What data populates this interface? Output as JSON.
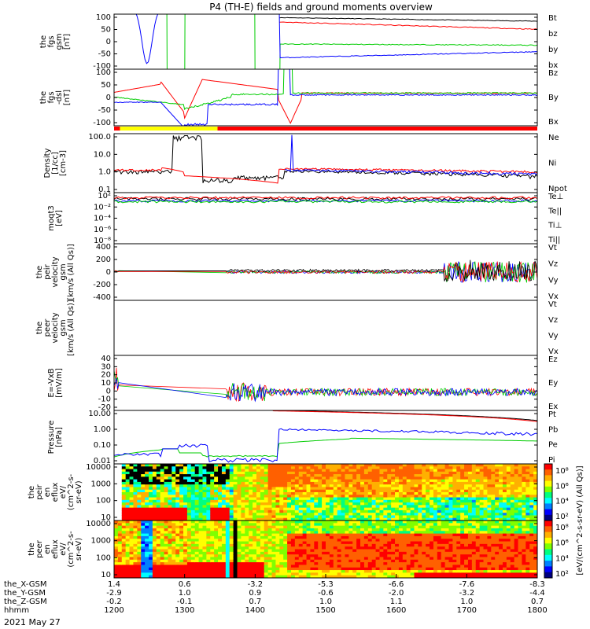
{
  "title": "P4 (TH-E) fields and ground moments overview",
  "date": "2021 May 27",
  "colors": {
    "black": "#000000",
    "red": "#ff0000",
    "green": "#00cc00",
    "blue": "#0000ff",
    "yellow": "#ffff00"
  },
  "chart_data": {
    "type": "line",
    "x_axis": {
      "rows": [
        {
          "label": "the_X-GSM",
          "values": [
            "1.4",
            "0.6",
            "-3.2",
            "-5.3",
            "-6.6",
            "-7.6",
            "-8.3"
          ]
        },
        {
          "label": "the_Y-GSM",
          "values": [
            "-2.9",
            "1.0",
            "0.9",
            "-0.6",
            "-2.0",
            "-3.2",
            "-4.4"
          ]
        },
        {
          "label": "the_Z-GSM",
          "values": [
            "-0.2",
            "-0.1",
            "0.7",
            "1.0",
            "1.1",
            "1.0",
            "0.7"
          ]
        },
        {
          "label": "hhmm",
          "values": [
            "1200",
            "1300",
            "1400",
            "1500",
            "1600",
            "1700",
            "1800"
          ]
        }
      ],
      "hhmm": [
        1200,
        1300,
        1400,
        1500,
        1600,
        1700,
        1800
      ]
    },
    "panels": [
      {
        "id": "fgs",
        "ylabel": [
          "the",
          "fgs",
          "gsm",
          "[nT]"
        ],
        "yticks": [
          "100",
          "50",
          "0",
          "-50",
          "-100"
        ],
        "ylim": [
          -100,
          100
        ],
        "legend": [
          {
            "text": "Bt",
            "color": "#000000"
          },
          {
            "text": "bz",
            "color": "#ff0000"
          },
          {
            "text": "by",
            "color": "#00cc00"
          },
          {
            "text": "bx",
            "color": "#0000ff"
          }
        ]
      },
      {
        "id": "fgs_dsl",
        "ylabel": [
          "the",
          "fgs",
          "-dsl",
          "[nT]"
        ],
        "yticks": [
          "100",
          "50",
          "0",
          "-50",
          "-100"
        ],
        "ylim": [
          -120,
          100
        ],
        "legend": [
          {
            "text": "Bz",
            "color": "#ff0000"
          },
          {
            "text": "By",
            "color": "#00cc00"
          },
          {
            "text": "Bx",
            "color": "#0000ff"
          }
        ]
      },
      {
        "id": "density",
        "ylabel": [
          "Density",
          "[1/cc]",
          "[cm-3]"
        ],
        "yticks": [
          "100.0",
          "10.0",
          "1.0",
          "0.1"
        ],
        "ylim": [
          0.05,
          300
        ],
        "scale": "log",
        "legend": [
          {
            "text": "Ne",
            "color": "#ff0000"
          },
          {
            "text": "Ni",
            "color": "#000000"
          },
          {
            "text": "Npot",
            "color": "#0000ff"
          }
        ]
      },
      {
        "id": "temp",
        "ylabel": [
          "moqt3",
          "[eV]"
        ],
        "yticks": [
          "10²",
          "10⁻²",
          "10⁻⁴",
          "10⁻⁶",
          "10⁻⁸"
        ],
        "scale": "log",
        "legend": [
          {
            "text": "Te⊥",
            "color": "#ff0000"
          },
          {
            "text": "Te||",
            "color": "#000000"
          },
          {
            "text": "Ti⊥",
            "color": "#0000ff"
          },
          {
            "text": "Ti||",
            "color": "#00cc00"
          }
        ]
      },
      {
        "id": "vel",
        "ylabel": [
          "the",
          "peir",
          "velocity",
          "gsm",
          "[km/s (All Qs)]"
        ],
        "yticks": [
          "400",
          "200",
          "0",
          "-200",
          "-400"
        ],
        "ylim": [
          -400,
          400
        ],
        "legend": [
          {
            "text": "Vt",
            "color": "#000000"
          },
          {
            "text": "Vz",
            "color": "#ff0000"
          },
          {
            "text": "Vy",
            "color": "#00cc00"
          },
          {
            "text": "Vx",
            "color": "#0000ff"
          }
        ]
      },
      {
        "id": "vel2",
        "ylabel": [
          "the",
          "peer",
          "velocity",
          "gsm",
          "[km/s (All Qs)]"
        ],
        "yticks": [],
        "legend": [
          {
            "text": "Vt",
            "color": "#000000"
          },
          {
            "text": "Vz",
            "color": "#ff0000"
          },
          {
            "text": "Vy",
            "color": "#00cc00"
          },
          {
            "text": "Vx",
            "color": "#0000ff"
          }
        ]
      },
      {
        "id": "efield",
        "ylabel": [
          "E=-VxB",
          "[mV/m]"
        ],
        "yticks": [
          "40",
          "30",
          "20",
          "10",
          "0",
          "-10",
          "-20"
        ],
        "ylim": [
          -20,
          40
        ],
        "legend": [
          {
            "text": "Ez",
            "color": "#ff0000"
          },
          {
            "text": "Ey",
            "color": "#00cc00"
          },
          {
            "text": "Ex",
            "color": "#0000ff"
          }
        ]
      },
      {
        "id": "pressure",
        "ylabel": [
          "Pressure",
          "[nPa]"
        ],
        "yticks": [
          "10.00",
          "1.00",
          "0.10",
          "0.01"
        ],
        "scale": "log",
        "legend": [
          {
            "text": "Pt",
            "color": "#000000"
          },
          {
            "text": "Pb",
            "color": "#ff0000"
          },
          {
            "text": "Pe",
            "color": "#00cc00"
          },
          {
            "text": "Pi",
            "color": "#0000ff"
          }
        ]
      },
      {
        "id": "peir_spec",
        "ylabel": [
          "the",
          "peir",
          "en",
          "eflux",
          "eV/",
          "(cm^2-s-",
          "sr-eV)"
        ],
        "yticks": [
          "10000",
          "1000",
          "100",
          "10"
        ],
        "scale": "log",
        "type": "heatmap"
      },
      {
        "id": "peer_spec",
        "ylabel": [
          "the",
          "peer",
          "en",
          "eflux",
          "eV/",
          "(cm^2-s-",
          "sr-eV)"
        ],
        "yticks": [
          "10000",
          "1000",
          "100",
          "10"
        ],
        "scale": "log",
        "type": "heatmap"
      }
    ],
    "colorbar": {
      "label": "[eV/(cm^2-s-sr-eV) (All Qs)]",
      "ticks_upper": [
        "10⁸",
        "10⁶",
        "10⁴",
        "10²"
      ],
      "ticks_lower": [
        "10⁸",
        "10⁶",
        "10⁴",
        "10²"
      ]
    }
  }
}
